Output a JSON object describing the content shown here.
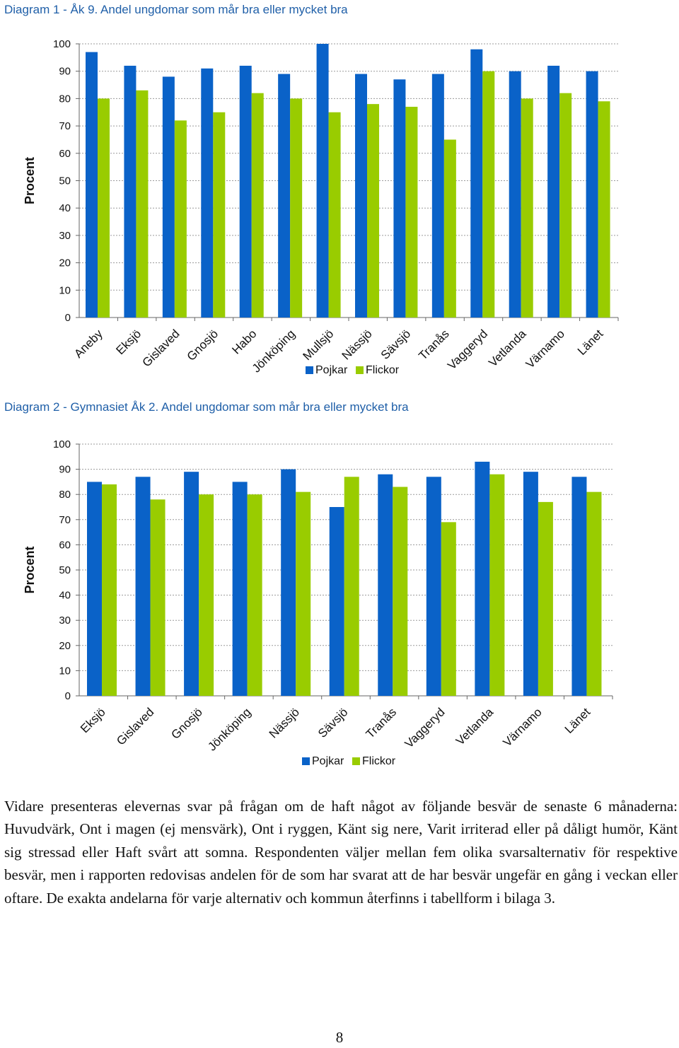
{
  "colors": {
    "pojkar": "#0a62c8",
    "flickor": "#99cc00",
    "grid": "#9a9a9a",
    "axis": "#666666"
  },
  "chart_data": [
    {
      "type": "bar",
      "title": "Diagram 1 - Åk 9. Andel ungdomar som mår bra eller mycket bra",
      "ylabel": "Procent",
      "ylim": [
        0,
        100
      ],
      "yticks": [
        0,
        10,
        20,
        30,
        40,
        50,
        60,
        70,
        80,
        90,
        100
      ],
      "grid": true,
      "legend": "bottom",
      "categories": [
        "Aneby",
        "Eksjö",
        "Gislaved",
        "Gnosjö",
        "Habo",
        "Jönköping",
        "Mullsjö",
        "Nässjö",
        "Sävsjö",
        "Tranås",
        "Vaggeryd",
        "Vetlanda",
        "Värnamo",
        "Länet"
      ],
      "series": [
        {
          "name": "Pojkar",
          "values": [
            97,
            92,
            88,
            91,
            92,
            89,
            100,
            89,
            87,
            89,
            98,
            90,
            92,
            90
          ]
        },
        {
          "name": "Flickor",
          "values": [
            80,
            83,
            72,
            75,
            82,
            80,
            75,
            78,
            77,
            65,
            90,
            80,
            82,
            79
          ]
        }
      ]
    },
    {
      "type": "bar",
      "title": "Diagram 2 - Gymnasiet Åk 2. Andel ungdomar som mår bra eller mycket bra",
      "ylabel": "Procent",
      "ylim": [
        0,
        100
      ],
      "yticks": [
        0,
        10,
        20,
        30,
        40,
        50,
        60,
        70,
        80,
        90,
        100
      ],
      "grid": true,
      "legend": "bottom",
      "categories": [
        "Eksjö",
        "Gislaved",
        "Gnosjö",
        "Jönköping",
        "Nässjö",
        "Sävsjö",
        "Tranås",
        "Vaggeryd",
        "Vetlanda",
        "Värnamo",
        "Länet"
      ],
      "series": [
        {
          "name": "Pojkar",
          "values": [
            85,
            87,
            89,
            85,
            90,
            75,
            88,
            87,
            93,
            89,
            87
          ]
        },
        {
          "name": "Flickor",
          "values": [
            84,
            78,
            80,
            80,
            81,
            87,
            83,
            69,
            88,
            77,
            81
          ]
        }
      ]
    }
  ],
  "paragraph": "Vidare presenteras elevernas svar på frågan om de haft något av följande besvär de senaste 6 månaderna: Huvudvärk, Ont i magen (ej mensvärk), Ont i ryggen, Känt sig nere, Varit irriterad eller på dåligt humör, Känt sig stressad eller Haft svårt att somna. Respondenten väljer mellan fem olika svarsalternativ för respektive besvär, men i rapporten redovisas andelen för de som har svarat att de har besvär ungefär en gång i veckan eller oftare. De exakta andelarna för varje alternativ och kommun återfinns i tabellform i bilaga 3.",
  "page_number": "8"
}
